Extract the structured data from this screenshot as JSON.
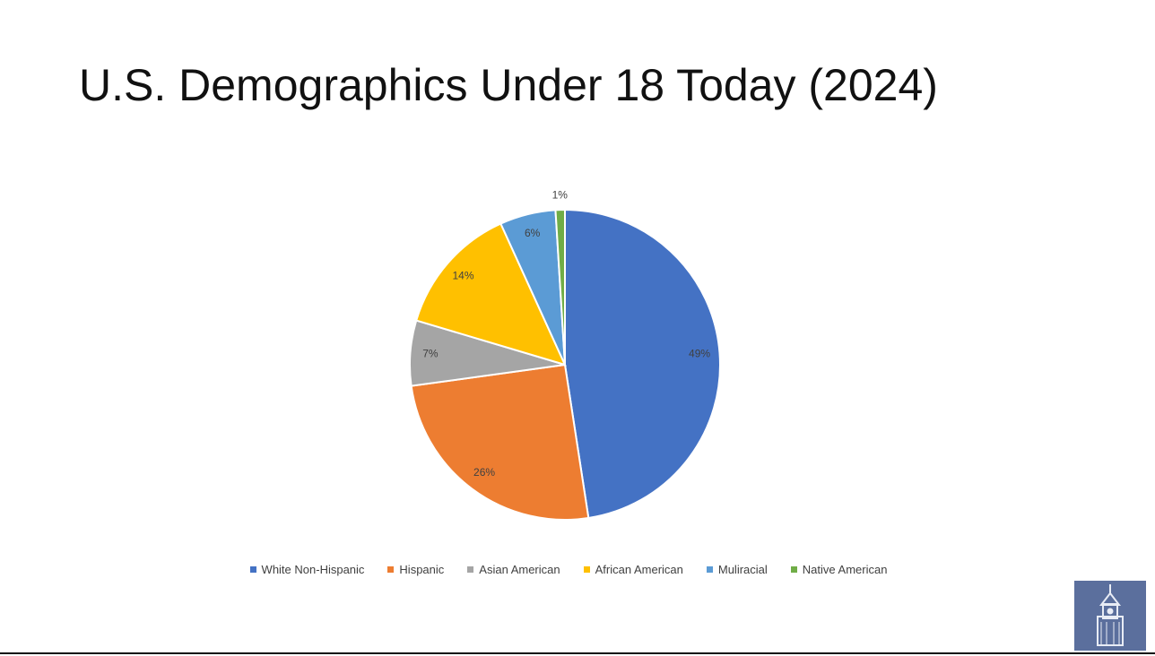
{
  "chart_data": {
    "type": "pie",
    "title": "U.S. Demographics Under 18 Today (2024)",
    "categories": [
      "White Non-Hispanic",
      "Hispanic",
      "Asian American",
      "African American",
      "Muliracial",
      "Native American"
    ],
    "values": [
      49,
      26,
      7,
      14,
      6,
      1
    ],
    "value_labels": [
      "49%",
      "26%",
      "7%",
      "14%",
      "6%",
      "1%"
    ],
    "colors": [
      "#4472c4",
      "#ed7d31",
      "#a5a5a5",
      "#ffc000",
      "#5b9bd5",
      "#70ad47"
    ],
    "legend": "bottom"
  }
}
